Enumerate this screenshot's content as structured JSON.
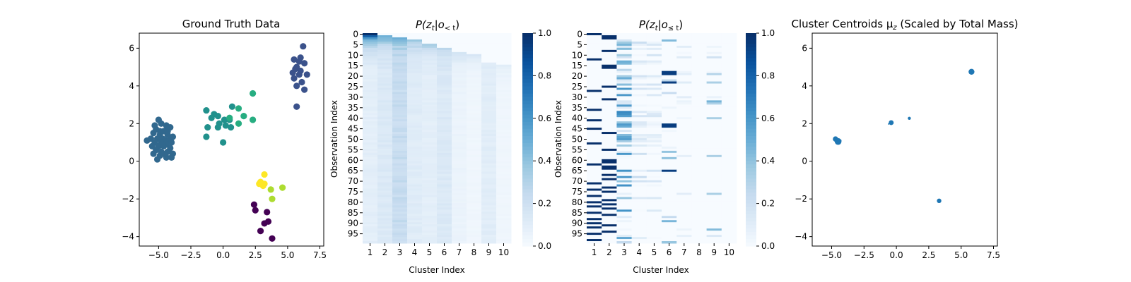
{
  "chart_data": [
    {
      "type": "scatter",
      "title": "Ground Truth Data",
      "xlim": [
        -6.5,
        7.8
      ],
      "ylim": [
        -4.5,
        6.8
      ],
      "xticks": [
        -5.0,
        -2.5,
        0.0,
        2.5,
        5.0,
        7.5
      ],
      "xtick_labels": [
        "−5.0",
        "−2.5",
        "0.0",
        "2.5",
        "5.0",
        "7.5"
      ],
      "yticks": [
        -4,
        -2,
        0,
        2,
        4,
        6
      ],
      "ytick_labels": [
        "−4",
        "−2",
        "0",
        "2",
        "4",
        "6"
      ],
      "series": [
        {
          "color": "#440154",
          "points": [
            [
              2.4,
              -2.3
            ],
            [
              2.5,
              -2.6
            ],
            [
              3.4,
              -2.7
            ],
            [
              3.2,
              -3.3
            ],
            [
              2.9,
              -3.7
            ],
            [
              3.8,
              -4.1
            ],
            [
              3.5,
              -3.2
            ]
          ]
        },
        {
          "color": "#3b528b",
          "points": [
            [
              6.2,
              6.1
            ],
            [
              5.5,
              5.4
            ],
            [
              5.9,
              5.3
            ],
            [
              6.3,
              5.2
            ],
            [
              5.7,
              5.0
            ],
            [
              6.0,
              4.8
            ],
            [
              5.4,
              4.7
            ],
            [
              5.9,
              4.6
            ],
            [
              6.5,
              4.6
            ],
            [
              5.5,
              4.4
            ],
            [
              6.1,
              4.2
            ],
            [
              5.7,
              4.0
            ],
            [
              6.3,
              3.8
            ],
            [
              5.7,
              2.9
            ],
            [
              6.0,
              5.5
            ],
            [
              5.6,
              4.9
            ]
          ]
        },
        {
          "color": "#31688e",
          "points": [
            [
              -5.0,
              2.2
            ],
            [
              -4.8,
              2.0
            ],
            [
              -4.4,
              1.9
            ],
            [
              -5.2,
              1.7
            ],
            [
              -4.1,
              1.8
            ],
            [
              -4.6,
              1.6
            ],
            [
              -5.4,
              1.5
            ],
            [
              -4.9,
              1.4
            ],
            [
              -4.3,
              1.4
            ],
            [
              -3.9,
              1.3
            ],
            [
              -5.6,
              1.2
            ],
            [
              -5.1,
              1.2
            ],
            [
              -4.7,
              1.2
            ],
            [
              -4.5,
              1.1
            ],
            [
              -4.2,
              1.1
            ],
            [
              -5.9,
              1.1
            ],
            [
              -5.3,
              1.0
            ],
            [
              -4.8,
              1.0
            ],
            [
              -4.4,
              0.9
            ],
            [
              -4.0,
              1.0
            ],
            [
              -5.5,
              0.8
            ],
            [
              -5.0,
              0.8
            ],
            [
              -4.6,
              0.8
            ],
            [
              -4.1,
              0.7
            ],
            [
              -5.2,
              0.6
            ],
            [
              -4.8,
              0.5
            ],
            [
              -4.3,
              0.5
            ],
            [
              -3.9,
              0.4
            ],
            [
              -5.4,
              0.4
            ],
            [
              -4.9,
              0.3
            ],
            [
              -4.4,
              0.2
            ],
            [
              -4.0,
              0.2
            ],
            [
              -5.1,
              0.1
            ],
            [
              -4.6,
              0.4
            ],
            [
              -4.7,
              0.9
            ],
            [
              -4.9,
              1.6
            ],
            [
              -4.3,
              1.6
            ],
            [
              -5.3,
              1.9
            ]
          ]
        },
        {
          "color": "#21918c",
          "points": [
            [
              0.7,
              2.9
            ],
            [
              -1.3,
              2.7
            ],
            [
              -0.7,
              2.5
            ],
            [
              -0.4,
              2.4
            ],
            [
              -0.9,
              2.3
            ],
            [
              0.1,
              2.2
            ],
            [
              -0.3,
              2.0
            ],
            [
              0.5,
              2.2
            ],
            [
              -1.2,
              1.8
            ],
            [
              0.2,
              1.9
            ],
            [
              -0.4,
              1.8
            ],
            [
              0.6,
              1.8
            ],
            [
              -1.3,
              1.3
            ],
            [
              0.0,
              1.0
            ]
          ]
        },
        {
          "color": "#27ad81",
          "points": [
            [
              2.3,
              3.6
            ],
            [
              1.2,
              2.8
            ],
            [
              1.6,
              2.4
            ],
            [
              2.3,
              2.2
            ],
            [
              1.2,
              2.0
            ],
            [
              0.5,
              2.3
            ]
          ]
        },
        {
          "color": "#addc30",
          "points": [
            [
              3.7,
              -1.5
            ],
            [
              4.6,
              -1.4
            ],
            [
              3.8,
              -2.0
            ]
          ]
        },
        {
          "color": "#fde725",
          "points": [
            [
              3.2,
              -0.7
            ],
            [
              3.0,
              -1.2
            ],
            [
              2.9,
              -1.1
            ],
            [
              3.2,
              -1.2
            ],
            [
              3.1,
              -1.3
            ],
            [
              2.8,
              -1.2
            ]
          ]
        }
      ]
    },
    {
      "type": "heatmap",
      "title_main": "P(z",
      "title_sub": "t",
      "title_mid": "|o",
      "title_sub2": "< t",
      "title_end": ")",
      "xlabel": "Cluster Index",
      "ylabel": "Observation Index",
      "x_tick_labels": [
        "1",
        "2",
        "3",
        "4",
        "5",
        "6",
        "7",
        "8",
        "9",
        "10"
      ],
      "y_tick_labels": [
        "0",
        "5",
        "10",
        "15",
        "20",
        "25",
        "30",
        "35",
        "40",
        "45",
        "50",
        "55",
        "60",
        "65",
        "70",
        "75",
        "80",
        "85",
        "90",
        "95"
      ],
      "colorbar_ticks": [
        "0.0",
        "0.2",
        "0.4",
        "0.6",
        "0.8",
        "1.0"
      ],
      "rows": 100,
      "cols": 10,
      "start_rows": [
        0,
        1,
        2,
        3,
        5,
        7,
        9,
        10,
        14,
        15
      ],
      "onset_values": [
        1.0,
        0.55,
        0.5,
        0.4,
        0.33,
        0.28,
        0.2,
        0.15,
        0.12,
        0.11
      ],
      "steady_values": [
        0.1,
        0.14,
        0.24,
        0.12,
        0.1,
        0.14,
        0.06,
        0.04,
        0.11,
        0.04
      ]
    },
    {
      "type": "heatmap",
      "title_main": "P(z",
      "title_sub": "t",
      "title_mid": "|o",
      "title_sub2": "≤ t",
      "title_end": ")",
      "xlabel": "Cluster Index",
      "ylabel": "Observation Index",
      "x_tick_labels": [
        "1",
        "2",
        "3",
        "4",
        "5",
        "6",
        "7",
        "8",
        "9",
        "10"
      ],
      "y_tick_labels": [
        "0",
        "5",
        "10",
        "15",
        "20",
        "25",
        "30",
        "35",
        "40",
        "45",
        "50",
        "55",
        "60",
        "65",
        "70",
        "75",
        "80",
        "85",
        "90",
        "95"
      ],
      "colorbar_ticks": [
        "0.0",
        "0.2",
        "0.4",
        "0.6",
        "0.8",
        "1.0"
      ],
      "rows": 100,
      "cols": 10,
      "dark_col1_rows": [
        0,
        12,
        27,
        36,
        41,
        45,
        52,
        62,
        71,
        74,
        77,
        80,
        82,
        85,
        88,
        90,
        92,
        95,
        98
      ],
      "dark_col2_rows": [
        1,
        2,
        8,
        15,
        16,
        25,
        31,
        47,
        55,
        60,
        61,
        63,
        64,
        67,
        69,
        73,
        75,
        79,
        81,
        83,
        86,
        91,
        94
      ],
      "col3_mass": 0.55,
      "col6_dark_rows": [
        18,
        19,
        23,
        43,
        44,
        45,
        60,
        65,
        69,
        75
      ]
    },
    {
      "type": "scatter",
      "title": "Cluster Centroids μ",
      "title_sub": "z",
      "title_end": " (Scaled by Total Mass)",
      "xlim": [
        -6.5,
        7.8
      ],
      "ylim": [
        -4.5,
        6.8
      ],
      "xticks": [
        -5.0,
        -2.5,
        0.0,
        2.5,
        5.0,
        7.5
      ],
      "xtick_labels": [
        "−5.0",
        "−2.5",
        "0.0",
        "2.5",
        "5.0",
        "7.5"
      ],
      "yticks": [
        -4,
        -2,
        0,
        2,
        4,
        6
      ],
      "ytick_labels": [
        "−4",
        "−2",
        "0",
        "2",
        "4",
        "6"
      ],
      "color": "#1f77b4",
      "points": [
        {
          "x": -4.5,
          "y": 1.05,
          "size": 4.8
        },
        {
          "x": -4.7,
          "y": 1.18,
          "size": 3.8
        },
        {
          "x": -4.3,
          "y": 1.1,
          "size": 1.2
        },
        {
          "x": 5.8,
          "y": 4.75,
          "size": 4.2
        },
        {
          "x": -0.4,
          "y": 2.05,
          "size": 3.5
        },
        {
          "x": 1.0,
          "y": 2.28,
          "size": 2.2
        },
        {
          "x": 3.3,
          "y": -2.1,
          "size": 3.2
        },
        {
          "x": -0.6,
          "y": 1.98,
          "size": 1.0
        }
      ]
    }
  ]
}
